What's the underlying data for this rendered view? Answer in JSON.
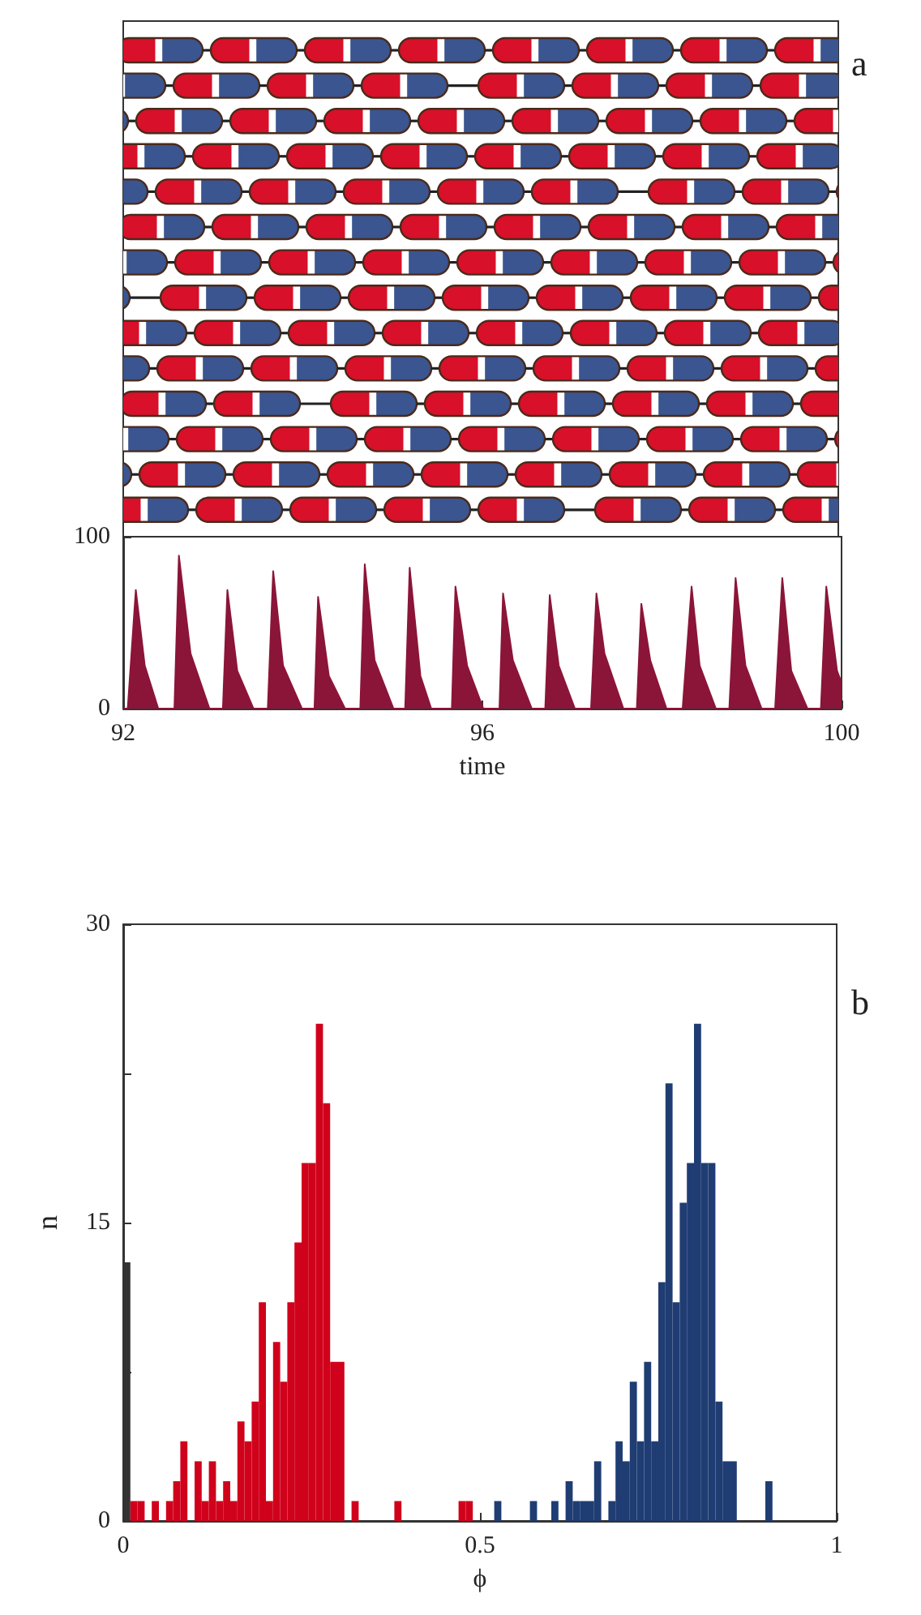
{
  "chart_data": [
    {
      "type": "area",
      "xlabel": "time",
      "color": "#8b1538",
      "xlim": [
        92,
        100
      ],
      "xticks": [
        92,
        96,
        100
      ],
      "ylim": [
        0,
        100
      ],
      "yticks": [
        0,
        100
      ],
      "annotations": [
        "a"
      ],
      "x": [
        92,
        92.05,
        92.14,
        92.24,
        92.39,
        92.57,
        92.62,
        92.75,
        92.96,
        93.11,
        93.16,
        93.27,
        93.45,
        93.61,
        93.67,
        93.78,
        93.99,
        94.13,
        94.17,
        94.29,
        94.47,
        94.64,
        94.69,
        94.8,
        95.01,
        95.14,
        95.19,
        95.31,
        95.43,
        95.66,
        95.7,
        95.83,
        96.01,
        96.19,
        96.23,
        96.34,
        96.55,
        96.7,
        96.75,
        96.85,
        97.03,
        97.21,
        97.27,
        97.36,
        97.57,
        97.72,
        97.77,
        97.87,
        98.05,
        98.23,
        98.33,
        98.42,
        98.6,
        98.75,
        98.82,
        98.93,
        99.11,
        99.26,
        99.34,
        99.44,
        99.62,
        99.77,
        99.83,
        99.95,
        100
      ],
      "values": [
        0,
        0,
        69,
        25,
        0,
        0,
        89,
        32,
        0,
        0,
        69,
        22,
        0,
        0,
        80,
        25,
        0,
        0,
        65,
        19,
        0,
        0,
        84,
        28,
        0,
        0,
        82,
        19,
        0,
        0,
        71,
        25,
        0,
        0,
        67,
        28,
        0,
        0,
        66,
        25,
        0,
        0,
        67,
        32,
        0,
        0,
        61,
        28,
        0,
        0,
        71,
        25,
        0,
        0,
        76,
        25,
        0,
        0,
        76,
        22,
        0,
        0,
        71,
        22,
        15
      ]
    },
    {
      "type": "histogram",
      "xlabel": "ϕ",
      "ylabel": "n",
      "xlim": [
        0,
        1
      ],
      "xticks": [
        0,
        {
          "value": 0.25,
          "label": null
        },
        0.5,
        {
          "value": 0.75,
          "label": null
        },
        1
      ],
      "ylim": [
        0,
        30
      ],
      "yticks": [
        0,
        {
          "value": 7.5,
          "label": null
        },
        15,
        {
          "value": 22.5,
          "label": null
        },
        30
      ],
      "annotations": [
        "b"
      ],
      "bins": [
        0,
        0.01,
        0.02,
        0.03,
        0.04,
        0.05,
        0.06,
        0.07,
        0.08,
        0.09,
        0.1,
        0.11,
        0.12,
        0.13,
        0.14,
        0.15,
        0.16,
        0.17,
        0.18,
        0.19,
        0.2,
        0.21,
        0.22,
        0.23,
        0.24,
        0.25,
        0.26,
        0.27,
        0.28,
        0.29,
        0.3,
        0.31,
        0.32,
        0.33,
        0.34,
        0.35,
        0.36,
        0.37,
        0.38,
        0.39,
        0.4,
        0.41,
        0.42,
        0.43,
        0.44,
        0.45,
        0.46,
        0.47,
        0.48,
        0.49,
        0.5,
        0.51,
        0.52,
        0.53,
        0.54,
        0.55,
        0.56,
        0.57,
        0.58,
        0.59,
        0.6,
        0.61,
        0.62,
        0.63,
        0.64,
        0.65,
        0.66,
        0.67,
        0.68,
        0.69,
        0.7,
        0.71,
        0.72,
        0.73,
        0.74,
        0.75,
        0.76,
        0.77,
        0.78,
        0.79,
        0.8,
        0.81,
        0.82,
        0.83,
        0.84,
        0.85,
        0.86,
        0.87,
        0.88,
        0.89,
        0.9,
        0.91,
        0.92,
        0.93,
        0.94,
        0.95,
        0.96,
        0.97,
        0.98,
        0.99,
        1
      ],
      "values": [
        13,
        1,
        1,
        0,
        1,
        0,
        1,
        2,
        4,
        0,
        3,
        1,
        3,
        1,
        2,
        1,
        5,
        4,
        6,
        11,
        1,
        9,
        7,
        11,
        14,
        18,
        18,
        25,
        21,
        8,
        8,
        0,
        1,
        0,
        0,
        0,
        0,
        0,
        1,
        0,
        0,
        0,
        0,
        0,
        0,
        0,
        0,
        1,
        1,
        0,
        0,
        0,
        1,
        0,
        0,
        0,
        0,
        1,
        0,
        0,
        1,
        0,
        2,
        1,
        1,
        1,
        3,
        0,
        1,
        4,
        3,
        7,
        4,
        8,
        4,
        12,
        22,
        11,
        16,
        18,
        25,
        18,
        18,
        6,
        3,
        3,
        0,
        0,
        0,
        0,
        2,
        0,
        0,
        0,
        0,
        0,
        0,
        0,
        0,
        0
      ],
      "colors": [
        "#333333",
        "#d0021b",
        "#d0021b",
        "#d0021b",
        "#d0021b",
        "#d0021b",
        "#d0021b",
        "#d0021b",
        "#d0021b",
        "#d0021b",
        "#d0021b",
        "#d0021b",
        "#d0021b",
        "#d0021b",
        "#d0021b",
        "#d0021b",
        "#d0021b",
        "#d0021b",
        "#d0021b",
        "#d0021b",
        "#d0021b",
        "#d0021b",
        "#d0021b",
        "#d0021b",
        "#d0021b",
        "#d0021b",
        "#d0021b",
        "#d0021b",
        "#d0021b",
        "#d0021b",
        "#d0021b",
        "#d0021b",
        "#d0021b",
        "#d0021b",
        "#d0021b",
        "#d0021b",
        "#d0021b",
        "#d0021b",
        "#d0021b",
        "#d0021b",
        "#d0021b",
        "#d0021b",
        "#d0021b",
        "#d0021b",
        "#d0021b",
        "#d0021b",
        "#d0021b",
        "#d0021b",
        "#d0021b",
        "#d0021b",
        "#d0021b",
        "#1f3d73",
        "#1f3d73",
        "#1f3d73",
        "#1f3d73",
        "#1f3d73",
        "#1f3d73",
        "#1f3d73",
        "#1f3d73",
        "#1f3d73",
        "#1f3d73",
        "#1f3d73",
        "#1f3d73",
        "#1f3d73",
        "#1f3d73",
        "#1f3d73",
        "#1f3d73",
        "#1f3d73",
        "#1f3d73",
        "#1f3d73",
        "#1f3d73",
        "#1f3d73",
        "#1f3d73",
        "#1f3d73",
        "#1f3d73",
        "#1f3d73",
        "#1f3d73",
        "#1f3d73",
        "#1f3d73",
        "#1f3d73",
        "#1f3d73",
        "#1f3d73",
        "#1f3d73",
        "#1f3d73",
        "#1f3d73",
        "#1f3d73",
        "#1f3d73",
        "#1f3d73",
        "#1f3d73",
        "#1f3d73",
        "#1f3d73",
        "#1f3d73",
        "#1f3d73",
        "#1f3d73",
        "#1f3d73",
        "#1f3d73",
        "#1f3d73",
        "#1f3d73",
        "#1f3d73",
        "#1f3d73"
      ]
    }
  ]
}
